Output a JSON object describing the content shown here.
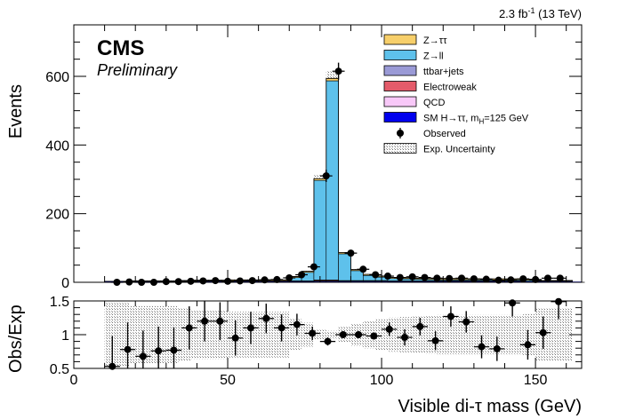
{
  "lumi": {
    "prefix": "2.3 fb",
    "exponent": "-1",
    "suffix": " (13 TeV)"
  },
  "cms": {
    "label": "CMS",
    "sublabel": "Preliminary"
  },
  "legend": [
    {
      "label": "Z→ττ",
      "color": "#f7cf6a",
      "kind": "box"
    },
    {
      "label": "Z→ll",
      "color": "#5ec1eb",
      "kind": "box"
    },
    {
      "label": "ttbar+jets",
      "color": "#9a9ad6",
      "kind": "box"
    },
    {
      "label": "Electroweak",
      "color": "#e45b6a",
      "kind": "box"
    },
    {
      "label": "QCD",
      "color": "#f8c8f8",
      "kind": "box"
    },
    {
      "label": "SM H→ττ, m",
      "sub": "H",
      "tail": "=125 GeV",
      "color": "#0000ee",
      "kind": "box"
    },
    {
      "label": "Observed",
      "color": "#000000",
      "kind": "marker"
    },
    {
      "label": "Exp. Uncertainty",
      "color": "#000000",
      "kind": "hatch"
    }
  ],
  "chart_data": [
    {
      "type": "bar",
      "panel": "main",
      "stacked": true,
      "xlabel": "Visible di-τ mass (GeV)",
      "ylabel": "Events",
      "xlim": [
        0,
        165
      ],
      "ylim": [
        0,
        750
      ],
      "bin_width": 4,
      "x_start": 10,
      "yticks": [
        0,
        200,
        400,
        600
      ],
      "series": [
        {
          "name": "Z→ll",
          "values": [
            0,
            0,
            0,
            0,
            0,
            0,
            0,
            0,
            0,
            0,
            0,
            0,
            0,
            0,
            0,
            10,
            25,
            290,
            580,
            78,
            29,
            15,
            10,
            7,
            6,
            5,
            4,
            3,
            3,
            3,
            3,
            3,
            3,
            3,
            3,
            0,
            0,
            0,
            0
          ]
        },
        {
          "name": "ttbar+jets",
          "values": [
            1,
            1,
            1,
            1,
            1,
            1,
            1,
            2,
            2,
            2,
            2,
            2,
            2,
            2,
            2,
            2,
            2,
            3,
            3,
            3,
            3,
            3,
            3,
            2,
            2,
            2,
            2,
            2,
            2,
            2,
            2,
            2,
            2,
            2,
            1,
            1,
            1,
            1,
            0
          ]
        },
        {
          "name": "Electroweak",
          "values": [
            1,
            1,
            1,
            1,
            1,
            1,
            1,
            1,
            1,
            1,
            1,
            1,
            1,
            1,
            1,
            1,
            1,
            2,
            2,
            1,
            1,
            1,
            1,
            1,
            1,
            1,
            1,
            1,
            1,
            1,
            1,
            1,
            1,
            1,
            1,
            1,
            1,
            1,
            0
          ]
        },
        {
          "name": "QCD",
          "values": [
            1,
            1,
            1,
            1,
            1,
            1,
            1,
            1,
            1,
            1,
            1,
            1,
            1,
            1,
            1,
            1,
            1,
            2,
            2,
            1,
            1,
            1,
            1,
            1,
            1,
            1,
            1,
            1,
            1,
            1,
            1,
            1,
            1,
            1,
            1,
            1,
            1,
            1,
            0
          ]
        },
        {
          "name": "Z→ττ",
          "values": [
            0,
            0,
            1,
            1,
            1,
            1,
            2,
            2,
            2,
            2,
            3,
            3,
            3,
            3,
            3,
            3,
            3,
            5,
            7,
            4,
            3,
            3,
            3,
            3,
            3,
            3,
            3,
            3,
            3,
            3,
            3,
            3,
            3,
            3,
            3,
            2,
            2,
            2,
            0
          ]
        }
      ],
      "observed": {
        "name": "Observed",
        "x": [
          14,
          18,
          22,
          26,
          30,
          34,
          38,
          42,
          46,
          50,
          54,
          58,
          62,
          66,
          70,
          74,
          78,
          82,
          86,
          90,
          94,
          98,
          102,
          106,
          110,
          114,
          118,
          122,
          126,
          130,
          134,
          138,
          142,
          146,
          150,
          154,
          158
        ],
        "y": [
          0,
          1,
          0,
          0,
          2,
          2,
          3,
          4,
          5,
          3,
          4,
          5,
          7,
          8,
          13,
          22,
          45,
          310,
          615,
          85,
          38,
          22,
          18,
          14,
          16,
          14,
          12,
          11,
          12,
          10,
          9,
          6,
          7,
          10,
          8,
          12,
          12
        ]
      }
    },
    {
      "type": "scatter",
      "panel": "ratio",
      "xlabel": "Visible di-τ mass (GeV)",
      "ylabel": "Obs/Exp",
      "xlim": [
        0,
        165
      ],
      "ylim": [
        0.5,
        1.5
      ],
      "xticks": [
        0,
        50,
        100,
        150
      ],
      "yticks": [
        0.5,
        1,
        1.5
      ],
      "points": {
        "x": [
          12.5,
          17.5,
          22.5,
          27.5,
          32.5,
          37.5,
          42.5,
          47.5,
          52.5,
          57.5,
          62.5,
          67.5,
          72.5,
          77.5,
          82.5,
          87.5,
          92.5,
          97.5,
          102.5,
          107.5,
          112.5,
          117.5,
          122.5,
          127.5,
          132.5,
          137.5,
          142.5,
          147.5,
          152.5,
          157.5
        ],
        "y": [
          0.53,
          0.78,
          0.68,
          0.76,
          0.77,
          1.1,
          1.2,
          1.2,
          0.95,
          1.1,
          1.24,
          1.1,
          1.15,
          1.02,
          0.9,
          1.0,
          1.0,
          0.98,
          1.08,
          0.96,
          1.12,
          0.91,
          1.27,
          1.19,
          0.82,
          0.79,
          1.47,
          0.85,
          1.03,
          1.49
        ],
        "err": [
          0.45,
          0.4,
          0.38,
          0.36,
          0.34,
          0.32,
          0.3,
          0.28,
          0.26,
          0.24,
          0.22,
          0.2,
          0.16,
          0.1,
          0.06,
          0.03,
          0.02,
          0.05,
          0.1,
          0.12,
          0.13,
          0.14,
          0.15,
          0.16,
          0.17,
          0.18,
          0.2,
          0.22,
          0.24,
          0.26
        ]
      }
    }
  ],
  "colors": {
    "zll": "#5ec1eb",
    "ztt": "#f7cf6a",
    "ttbar": "#9a9ad6",
    "ew": "#e45b6a",
    "qcd": "#f8c8f8",
    "higgs": "#0000ee"
  }
}
